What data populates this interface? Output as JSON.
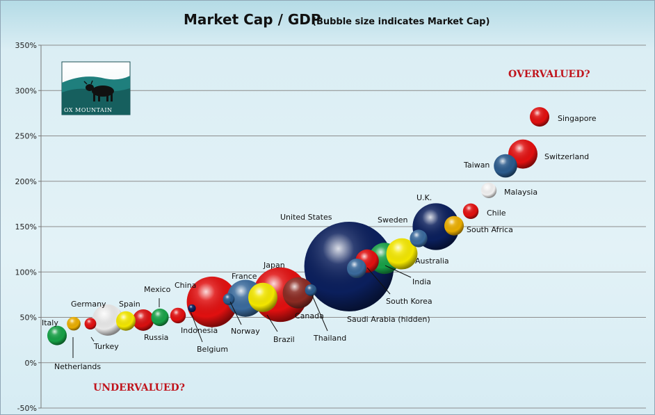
{
  "chart_data": {
    "type": "bubble",
    "title": "Market Cap / GDP",
    "subtitle": "(Bubble size indicates Market Cap)",
    "ylim": [
      -50,
      350
    ],
    "ytick_step": 50,
    "ytick_suffix": "%",
    "grid": true,
    "annotations": {
      "overvalued": "OVERVALUED?",
      "undervalued": "UNDERVALUED?"
    },
    "logo_text": "OX MOUNTAIN",
    "points": [
      {
        "name": "Italy",
        "label": "Italy",
        "rank": 1,
        "y": 30,
        "size": 0.5,
        "color": "#17a046"
      },
      {
        "name": "Netherlands",
        "label": "Netherlands",
        "rank": 2,
        "y": 43,
        "size": 0.35,
        "color": "#e8ac00"
      },
      {
        "name": "Turkey",
        "label": "Turkey",
        "rank": 3,
        "y": 43,
        "size": 0.3,
        "color": "#e01010"
      },
      {
        "name": "Germany",
        "label": "Germany",
        "rank": 4,
        "y": 47,
        "size": 0.8,
        "color": "#e8e8e8"
      },
      {
        "name": "Spain",
        "label": "Spain",
        "rank": 5,
        "y": 46,
        "size": 0.5,
        "color": "#f2e600"
      },
      {
        "name": "Russia",
        "label": "Russia",
        "rank": 6,
        "y": 47,
        "size": 0.55,
        "color": "#d81010"
      },
      {
        "name": "Mexico",
        "label": "Mexico",
        "rank": 7,
        "y": 50,
        "size": 0.45,
        "color": "#17a046"
      },
      {
        "name": "Indonesia",
        "label": "Indonesia",
        "rank": 8,
        "y": 52,
        "size": 0.4,
        "color": "#e01010"
      },
      {
        "name": "Belgium",
        "label": "Belgium",
        "rank": 9,
        "y": 60,
        "size": 0.2,
        "color": "#0b1f5c"
      },
      {
        "name": "China",
        "label": "China",
        "rank": 10,
        "y": 67,
        "size": 1.3,
        "color": "#e01010"
      },
      {
        "name": "Norway",
        "label": "Norway",
        "rank": 11,
        "y": 70,
        "size": 0.3,
        "color": "#2a5a8c"
      },
      {
        "name": "France",
        "label": "France",
        "rank": 12,
        "y": 71,
        "size": 0.95,
        "color": "#3a6a9c"
      },
      {
        "name": "Brazil",
        "label": "Brazil",
        "rank": 13,
        "y": 72,
        "size": 0.75,
        "color": "#f2e600"
      },
      {
        "name": "Japan",
        "label": "Japan",
        "rank": 14,
        "y": 75,
        "size": 1.4,
        "color": "#e01010"
      },
      {
        "name": "Canada",
        "label": "Canada",
        "rank": 15,
        "y": 77,
        "size": 0.8,
        "color": "#8a2a22"
      },
      {
        "name": "Thailand",
        "label": "Thailand",
        "rank": 16,
        "y": 80,
        "size": 0.3,
        "color": "#2a5a8c"
      },
      {
        "name": "United States",
        "label": "United States",
        "rank": 17,
        "y": 106,
        "size": 2.3,
        "color": "#0b1f5c"
      },
      {
        "name": "Saudi Arabia",
        "label": "Saudi Arabia (hidden)",
        "rank": 18,
        "y": 104,
        "size": 0.5,
        "color": "#3a6a9c"
      },
      {
        "name": "South Korea",
        "label": "South Korea",
        "rank": 19,
        "y": 112,
        "size": 0.6,
        "color": "#e01010"
      },
      {
        "name": "India",
        "label": "India",
        "rank": 20,
        "y": 115,
        "size": 0.8,
        "color": "#17a046"
      },
      {
        "name": "Australia",
        "label": "Australia",
        "rank": 21,
        "y": 120,
        "size": 0.8,
        "color": "#f2e600"
      },
      {
        "name": "Sweden",
        "label": "Sweden",
        "rank": 22,
        "y": 137,
        "size": 0.45,
        "color": "#3a6a9c"
      },
      {
        "name": "U.K.",
        "label": "U.K.",
        "rank": 23,
        "y": 150,
        "size": 1.2,
        "color": "#0b1f5c"
      },
      {
        "name": "South Africa",
        "label": "South Africa",
        "rank": 24,
        "y": 151,
        "size": 0.5,
        "color": "#e8ac00"
      },
      {
        "name": "Chile",
        "label": "Chile",
        "rank": 25,
        "y": 167,
        "size": 0.4,
        "color": "#e01010"
      },
      {
        "name": "Malaysia",
        "label": "Malaysia",
        "rank": 26,
        "y": 190,
        "size": 0.4,
        "color": "#f0f0f0"
      },
      {
        "name": "Taiwan",
        "label": "Taiwan",
        "rank": 27,
        "y": 217,
        "size": 0.6,
        "color": "#2a5a8c"
      },
      {
        "name": "Switzerland",
        "label": "Switzerland",
        "rank": 28,
        "y": 230,
        "size": 0.75,
        "color": "#e01010"
      },
      {
        "name": "Singapore",
        "label": "Singapore",
        "rank": 29,
        "y": 271,
        "size": 0.5,
        "color": "#e01010"
      }
    ]
  }
}
